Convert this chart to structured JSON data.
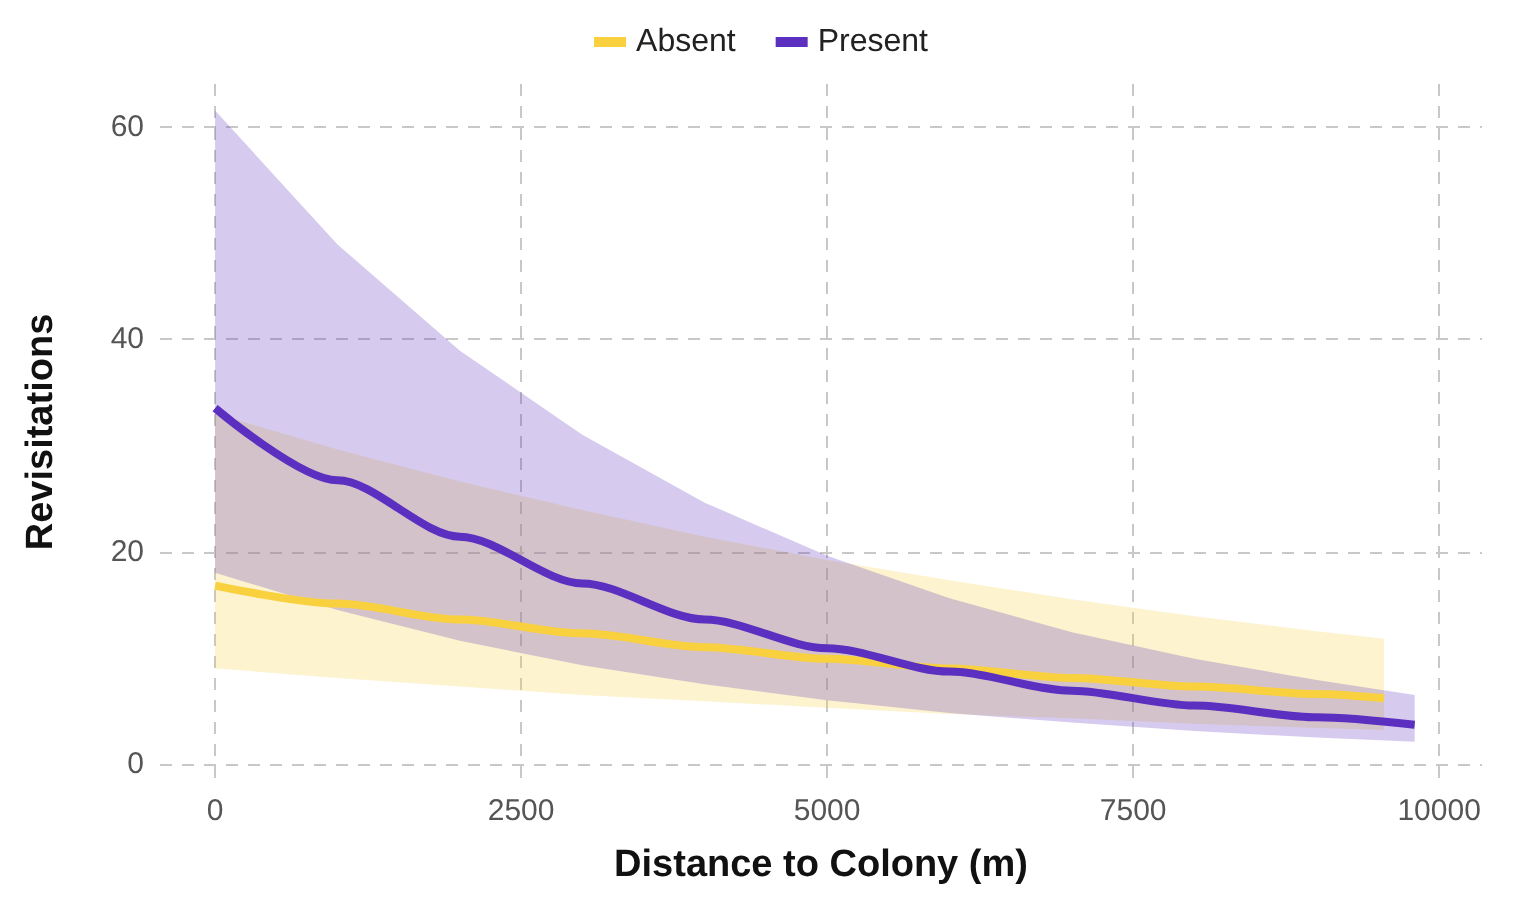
{
  "chart_data": {
    "type": "line",
    "xlabel": "Distance to Colony (m)",
    "ylabel": "Revisitations",
    "xlim": [
      -450,
      10350
    ],
    "ylim": [
      -1.5,
      64
    ],
    "xticks": [
      0,
      2500,
      5000,
      7500,
      10000
    ],
    "yticks": [
      0,
      20,
      40,
      60
    ],
    "grid": true,
    "legend": "top",
    "marker": "none",
    "line_style": "solid",
    "series": [
      {
        "name": "Absent",
        "color": "#f9d13e",
        "x": [
          0,
          1000,
          2000,
          3000,
          4000,
          5000,
          6000,
          7000,
          8000,
          9000,
          9550
        ],
        "values": [
          16.8,
          15.1,
          13.6,
          12.3,
          11.0,
          9.9,
          9.0,
          8.1,
          7.3,
          6.6,
          6.2
        ],
        "lower": [
          9,
          8.1,
          7.3,
          6.5,
          5.9,
          5.3,
          4.7,
          4.3,
          3.8,
          3.4,
          3.2
        ],
        "upper": [
          33,
          29.6,
          26.6,
          23.9,
          21.4,
          19.2,
          17.3,
          15.5,
          13.9,
          12.5,
          11.8
        ]
      },
      {
        "name": "Present",
        "color": "#5b2fbf",
        "x": [
          0,
          1000,
          2000,
          3000,
          4000,
          5000,
          6000,
          7000,
          8000,
          9000,
          9800
        ],
        "values": [
          33.5,
          26.7,
          21.4,
          17.0,
          13.6,
          10.9,
          8.7,
          6.9,
          5.5,
          4.4,
          3.7
        ],
        "lower": [
          18,
          14.5,
          11.6,
          9.3,
          7.5,
          6.0,
          4.8,
          3.9,
          3.1,
          2.5,
          2.1
        ],
        "upper": [
          61.5,
          48.9,
          38.9,
          31.0,
          24.6,
          19.6,
          15.6,
          12.4,
          9.9,
          7.9,
          6.5
        ]
      }
    ]
  }
}
